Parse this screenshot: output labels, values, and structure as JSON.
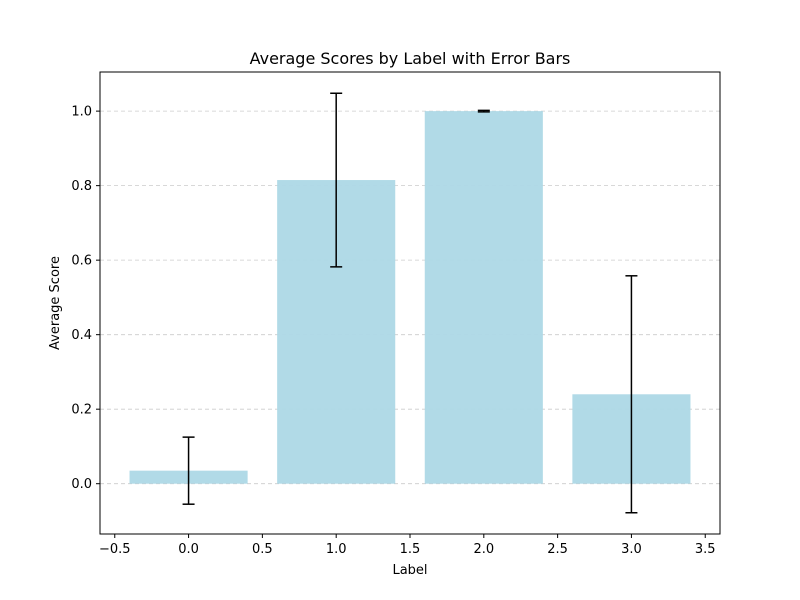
{
  "chart_data": {
    "type": "bar",
    "title": "Average Scores by Label with Error Bars",
    "xlabel": "Label",
    "ylabel": "Average Score",
    "x": [
      0.0,
      1.0,
      2.0,
      3.0
    ],
    "values": [
      0.035,
      0.815,
      1.0,
      0.24
    ],
    "errors": [
      0.09,
      0.233,
      0.002,
      0.318
    ],
    "bar_width": 0.8,
    "xlim": [
      -0.6,
      3.6
    ],
    "ylim": [
      -0.135,
      1.105
    ],
    "xticks": [
      -0.5,
      0.0,
      0.5,
      1.0,
      1.5,
      2.0,
      2.5,
      3.0,
      3.5
    ],
    "xtick_labels": [
      "−0.5",
      "0.0",
      "0.5",
      "1.0",
      "1.5",
      "2.0",
      "2.5",
      "3.0",
      "3.5"
    ],
    "yticks": [
      0.0,
      0.2,
      0.4,
      0.6,
      0.8,
      1.0
    ],
    "ytick_labels": [
      "0.0",
      "0.2",
      "0.4",
      "0.6",
      "0.8",
      "1.0"
    ],
    "grid": "y-dashed",
    "colors": {
      "bar": "#add8e6",
      "error_bar": "#000000",
      "grid": "#cccccc",
      "axis": "#000000"
    }
  }
}
